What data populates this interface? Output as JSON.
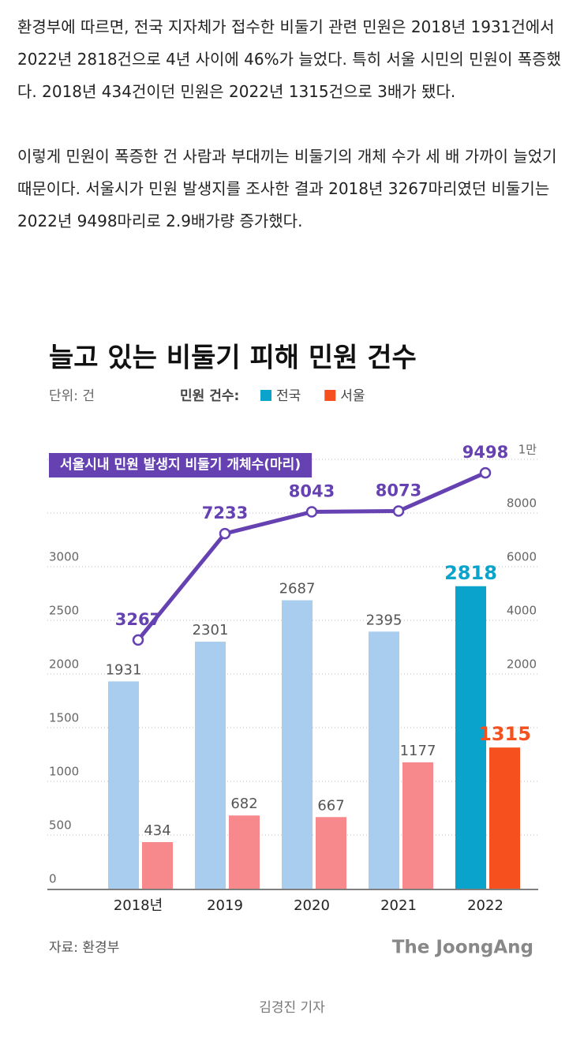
{
  "article": {
    "paragraphs": [
      "환경부에 따르면, 전국 지자체가 접수한 비둘기 관련 민원은 2018년 1931건에서 2022년 2818건으로 4년 사이에 46%가 늘었다. 특히 서울 시민의 민원이 폭증했다. 2018년 434건이던 민원은 2022년 1315건으로 3배가 됐다.",
      "이렇게 민원이 폭증한 건 사람과 부대끼는 비둘기의 개체 수가 세 배 가까이 늘었기 때문이다. 서울시가 민원 발생지를 조사한 결과 2018년 3267마리였던 비둘기는 2022년 9498마리로 2.9배가량 증가했다."
    ]
  },
  "chart_data": {
    "type": "bar",
    "title": "늘고 있는 비둘기 피해 민원 건수",
    "unit": "단위: 건",
    "legend_label": "민원 건수:",
    "categories": [
      "2018년",
      "2019",
      "2020",
      "2021",
      "2022"
    ],
    "series": [
      {
        "name": "전국",
        "color": "#0aa3cc",
        "colors": [
          "#a9cdee",
          "#a9cdee",
          "#a9cdee",
          "#a9cdee",
          "#0aa3cc"
        ],
        "values": [
          1931,
          2301,
          2687,
          2395,
          2818
        ]
      },
      {
        "name": "서울",
        "color": "#f5501e",
        "colors": [
          "#f7888c",
          "#f7888c",
          "#f7888c",
          "#f7888c",
          "#f5501e"
        ],
        "values": [
          434,
          682,
          667,
          1177,
          1315
        ]
      },
      {
        "name": "서울시내 민원 발생지 비둘기 개체수(마리)",
        "type": "line",
        "axis": "y2",
        "color": "#6541b2",
        "values": [
          3267,
          7233,
          8043,
          8073,
          9498
        ]
      }
    ],
    "ylim": [
      0,
      4000
    ],
    "yticks": [
      0,
      500,
      1000,
      1500,
      2000,
      2500,
      3000
    ],
    "y2lim": [
      -6000,
      10000
    ],
    "y2ticks": [
      2000,
      4000,
      6000,
      8000,
      {
        "value": 10000,
        "label": "1만"
      }
    ],
    "grid": true,
    "source": "자료: 환경부",
    "brand": "The JoongAng"
  },
  "caption": "김경진 기자"
}
